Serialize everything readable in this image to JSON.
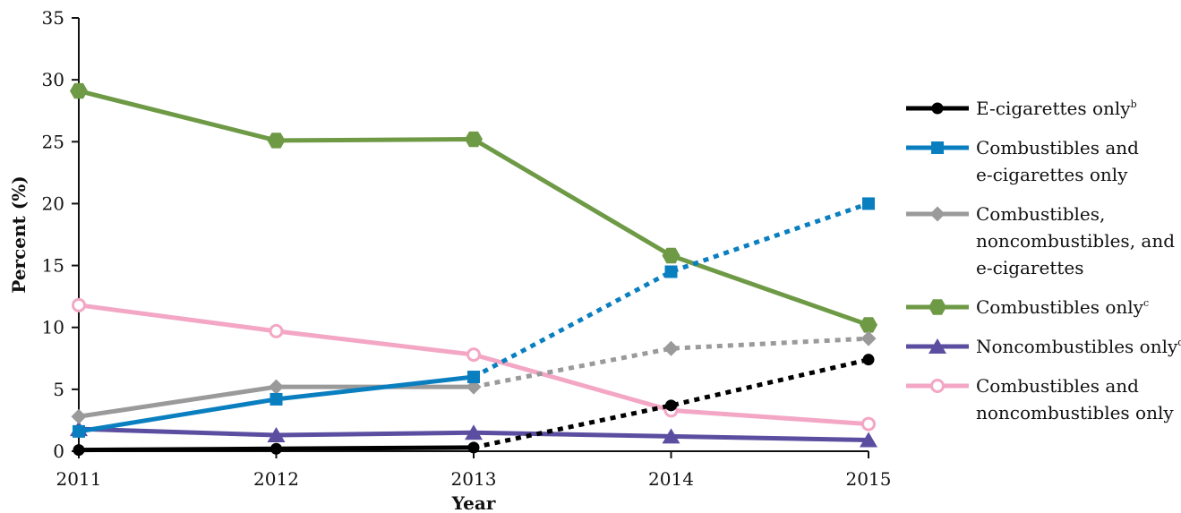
{
  "chart_data": {
    "type": "line",
    "xlabel": "Year",
    "ylabel": "Percent (%)",
    "x": [
      "2011",
      "2012",
      "2013",
      "2014",
      "2015"
    ],
    "ylim": [
      0,
      35
    ],
    "yticks": [
      0,
      5,
      10,
      15,
      20,
      25,
      30,
      35
    ],
    "grid": false,
    "legend_position": "right",
    "series": [
      {
        "name_lines": [
          [
            "E-cigarettes only",
            "b"
          ]
        ],
        "color": "#000000",
        "marker": "circle-filled",
        "values": [
          0.1,
          0.2,
          0.3,
          3.7,
          7.4
        ],
        "dotted_from_index": 2
      },
      {
        "name_lines": [
          [
            "Combustibles and",
            ""
          ],
          [
            "e-cigarettes only",
            ""
          ]
        ],
        "color": "#0a7fc0",
        "marker": "square",
        "values": [
          1.6,
          4.2,
          6.0,
          14.5,
          20.0
        ],
        "dotted_from_index": 2
      },
      {
        "name_lines": [
          [
            "Combustibles,",
            ""
          ],
          [
            "noncombustibles, and",
            ""
          ],
          [
            "e-cigarettes",
            ""
          ]
        ],
        "color": "#9a9a9a",
        "marker": "diamond",
        "values": [
          2.8,
          5.2,
          5.2,
          8.3,
          9.1
        ],
        "dotted_from_index": 2
      },
      {
        "name_lines": [
          [
            "Combustibles only",
            "c"
          ]
        ],
        "color": "#6e9a46",
        "marker": "hexagon",
        "values": [
          29.1,
          25.1,
          25.2,
          15.8,
          10.2
        ],
        "dotted_from_index": null
      },
      {
        "name_lines": [
          [
            "Noncombustibles only",
            "d"
          ]
        ],
        "color": "#5b4ea0",
        "marker": "triangle",
        "values": [
          1.8,
          1.3,
          1.5,
          1.2,
          0.9
        ],
        "dotted_from_index": null
      },
      {
        "name_lines": [
          [
            "Combustibles and",
            ""
          ],
          [
            "noncombustibles only",
            ""
          ]
        ],
        "color": "#f3a7c5",
        "marker": "circle-open",
        "values": [
          11.8,
          9.7,
          7.8,
          3.3,
          2.2
        ],
        "dotted_from_index": null
      }
    ]
  }
}
